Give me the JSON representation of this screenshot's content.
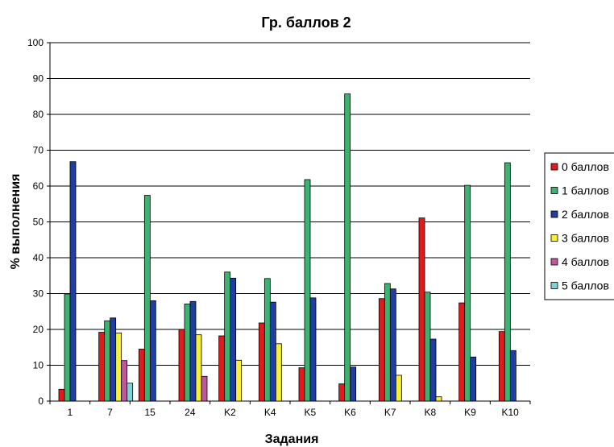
{
  "chart_data": {
    "type": "bar",
    "title": "Гр. баллов 2",
    "xlabel": "Задания",
    "ylabel": "% выполнения",
    "ylim": [
      0,
      100
    ],
    "yticks": [
      0,
      10,
      20,
      30,
      40,
      50,
      60,
      70,
      80,
      90,
      100
    ],
    "grid": true,
    "legend_position": "right",
    "categories": [
      "1",
      "7",
      "15",
      "24",
      "K2",
      "K4",
      "K5",
      "K6",
      "K7",
      "K8",
      "K9",
      "K10"
    ],
    "series": [
      {
        "name": "0 баллов",
        "color": "#e31a1c",
        "values": [
          3.3,
          19.2,
          14.5,
          20.0,
          18.2,
          21.8,
          9.3,
          4.8,
          28.6,
          51.1,
          27.4,
          19.4
        ]
      },
      {
        "name": "1 баллов",
        "color": "#3cb371",
        "values": [
          29.9,
          22.4,
          57.4,
          27.1,
          36.0,
          34.2,
          61.8,
          85.7,
          32.8,
          30.4,
          60.2,
          66.5
        ]
      },
      {
        "name": "2 баллов",
        "color": "#1f3ea3",
        "values": [
          66.8,
          23.2,
          28.0,
          27.8,
          34.3,
          27.6,
          28.8,
          9.5,
          31.3,
          17.3,
          12.3,
          14.1
        ]
      },
      {
        "name": "3 баллов",
        "color": "#f7ef3a",
        "values": [
          0,
          19.0,
          0,
          18.5,
          11.4,
          16.0,
          0,
          0,
          7.2,
          1.2,
          0,
          0
        ]
      },
      {
        "name": "4 баллов",
        "color": "#c2569a",
        "values": [
          0,
          11.3,
          0,
          6.9,
          0,
          0,
          0,
          0,
          0,
          0,
          0,
          0
        ]
      },
      {
        "name": "5 баллов",
        "color": "#7fd3d6",
        "values": [
          0,
          5.0,
          0,
          0,
          0,
          0,
          0,
          0,
          0,
          0,
          0,
          0
        ]
      }
    ]
  }
}
